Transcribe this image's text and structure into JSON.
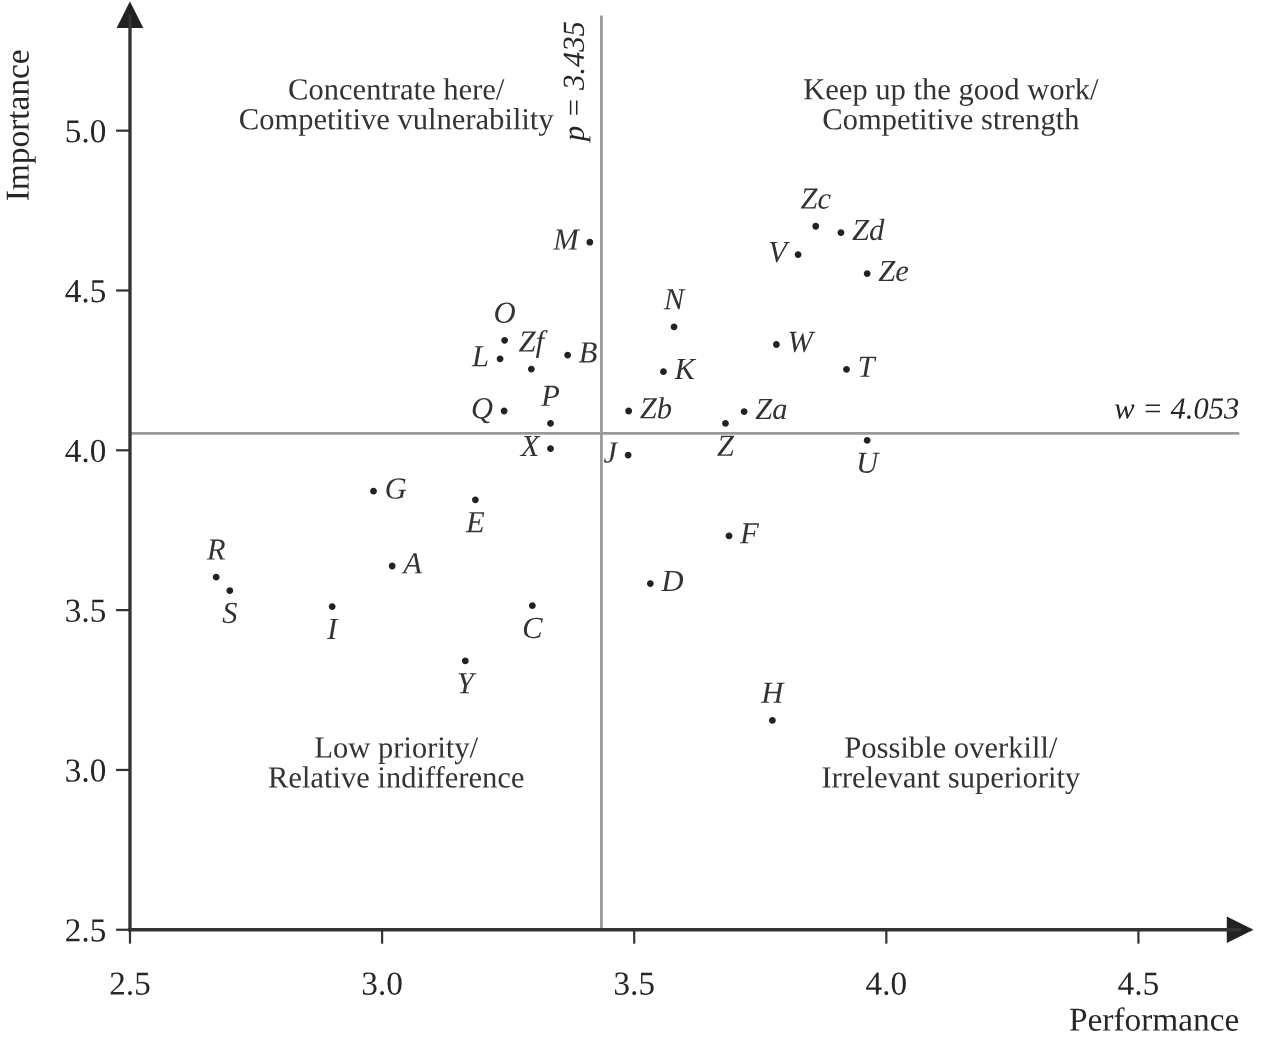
{
  "chart_data": {
    "type": "scatter",
    "xlabel": "Performance",
    "ylabel": "Importance",
    "xlim": [
      2.5,
      4.7
    ],
    "ylim": [
      2.5,
      5.36
    ],
    "xticks": [
      2.5,
      {
        "value": 3.0,
        "label": "3.0"
      },
      3.5,
      {
        "value": 4.0,
        "label": "4.0"
      },
      4.5
    ],
    "yticks": [
      2.5,
      {
        "value": 3.0,
        "label": "3.0"
      },
      3.5,
      {
        "value": 4.0,
        "label": "4.0"
      },
      4.5,
      {
        "value": 5.0,
        "label": "5.0"
      }
    ],
    "grid": false,
    "legend": false,
    "marker": "circle",
    "series": [
      {
        "color": "#222222",
        "x": [
          3.243,
          3.234,
          3.296,
          3.368,
          3.242,
          3.334,
          3.334,
          3.488,
          3.489,
          3.558,
          3.579,
          2.983,
          3.185,
          2.671,
          2.698,
          3.02,
          2.901,
          3.298,
          3.165,
          3.532,
          3.962,
          3.782,
          3.921,
          3.718,
          3.681,
          3.962,
          3.688,
          3.774,
          3.412,
          3.86,
          3.91,
          3.825
        ],
        "values": [
          4.344,
          4.286,
          4.254,
          4.298,
          4.123,
          4.084,
          4.005,
          3.985,
          4.123,
          4.246,
          4.386,
          3.872,
          3.845,
          3.603,
          3.561,
          3.638,
          3.511,
          3.514,
          3.341,
          3.583,
          4.553,
          4.331,
          4.253,
          4.121,
          4.084,
          4.031,
          3.732,
          3.155,
          4.651,
          4.701,
          4.681,
          4.612
        ]
      }
    ],
    "ref_lines": [
      {
        "axis": "x",
        "value": 3.435,
        "label": "p = 3.435",
        "color": "#999999"
      },
      {
        "axis": "y",
        "value": 4.053,
        "label": "w = 4.053",
        "color": "#999999"
      }
    ],
    "annotations": [
      {
        "text": "O",
        "x": 3.243,
        "y": 4.344
      },
      {
        "text": "L",
        "x": 3.234,
        "y": 4.286
      },
      {
        "text": "Zf",
        "x": 3.296,
        "y": 4.254
      },
      {
        "text": "B",
        "x": 3.368,
        "y": 4.298
      },
      {
        "text": "Q",
        "x": 3.242,
        "y": 4.123
      },
      {
        "text": "P",
        "x": 3.334,
        "y": 4.084
      },
      {
        "text": "X",
        "x": 3.334,
        "y": 4.005
      },
      {
        "text": "J",
        "x": 3.488,
        "y": 3.985
      },
      {
        "text": "Zb",
        "x": 3.489,
        "y": 4.123
      },
      {
        "text": "K",
        "x": 3.558,
        "y": 4.246
      },
      {
        "text": "N",
        "x": 3.579,
        "y": 4.386
      },
      {
        "text": "G",
        "x": 2.983,
        "y": 3.872
      },
      {
        "text": "E",
        "x": 3.185,
        "y": 3.845
      },
      {
        "text": "R",
        "x": 2.671,
        "y": 3.603
      },
      {
        "text": "S",
        "x": 2.698,
        "y": 3.561
      },
      {
        "text": "A",
        "x": 3.02,
        "y": 3.638
      },
      {
        "text": "I",
        "x": 2.901,
        "y": 3.511
      },
      {
        "text": "C",
        "x": 3.298,
        "y": 3.514
      },
      {
        "text": "Y",
        "x": 3.165,
        "y": 3.341
      },
      {
        "text": "D",
        "x": 3.532,
        "y": 3.583
      },
      {
        "text": "Ze",
        "x": 3.962,
        "y": 4.553
      },
      {
        "text": "W",
        "x": 3.782,
        "y": 4.331
      },
      {
        "text": "T",
        "x": 3.921,
        "y": 4.253
      },
      {
        "text": "Za",
        "x": 3.718,
        "y": 4.121
      },
      {
        "text": "Z",
        "x": 3.681,
        "y": 4.084
      },
      {
        "text": "U",
        "x": 3.962,
        "y": 4.031
      },
      {
        "text": "F",
        "x": 3.688,
        "y": 3.732
      },
      {
        "text": "H",
        "x": 3.774,
        "y": 3.155
      },
      {
        "text": "M",
        "x": 3.412,
        "y": 4.651
      },
      {
        "text": "Zc",
        "x": 3.86,
        "y": 4.701
      },
      {
        "text": "Zd",
        "x": 3.91,
        "y": 4.681
      },
      {
        "text": "V",
        "x": 3.825,
        "y": 4.612
      },
      "Concentrate here/\nCompetitive vulnerability",
      "Keep up the good work/\nCompetitive strength",
      "Low priority/\nRelative indifference",
      "Possible overkill/\nIrrelevant superiority"
    ]
  }
}
